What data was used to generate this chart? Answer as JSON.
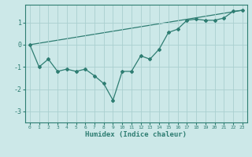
{
  "line1_x": [
    0,
    1,
    2,
    3,
    4,
    5,
    6,
    7,
    8,
    9,
    10,
    11,
    12,
    13,
    14,
    15,
    16,
    17,
    18,
    19,
    20,
    21,
    22,
    23
  ],
  "line1_y": [
    0.0,
    -1.0,
    -0.65,
    -1.2,
    -1.1,
    -1.2,
    -1.1,
    -1.4,
    -1.75,
    -2.5,
    -1.2,
    -1.2,
    -0.5,
    -0.65,
    -0.2,
    0.55,
    0.7,
    1.1,
    1.15,
    1.1,
    1.1,
    1.2,
    1.5,
    1.55
  ],
  "line2_x": [
    0,
    23
  ],
  "line2_y": [
    0.0,
    1.55
  ],
  "color": "#2e7d72",
  "bg_color": "#cce8e8",
  "grid_color": "#aacfcf",
  "xlabel": "Humidex (Indice chaleur)",
  "ylim": [
    -3.5,
    1.8
  ],
  "xlim": [
    -0.5,
    23.5
  ],
  "yticks": [
    -3,
    -2,
    -1,
    0,
    1
  ],
  "xticks": [
    0,
    1,
    2,
    3,
    4,
    5,
    6,
    7,
    8,
    9,
    10,
    11,
    12,
    13,
    14,
    15,
    16,
    17,
    18,
    19,
    20,
    21,
    22,
    23
  ]
}
